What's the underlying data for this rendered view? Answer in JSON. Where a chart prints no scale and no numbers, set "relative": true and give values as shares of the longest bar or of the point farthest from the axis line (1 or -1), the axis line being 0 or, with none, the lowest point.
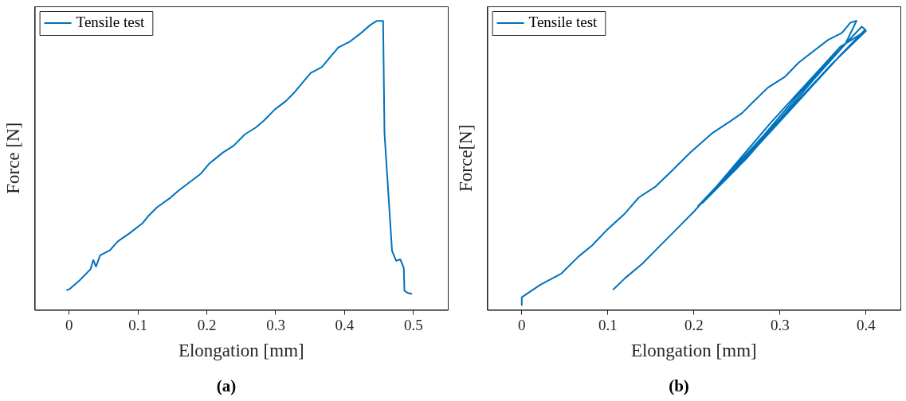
{
  "chart_data": [
    {
      "type": "line",
      "xlabel": "Elongation [mm]",
      "ylabel": "Force [N]",
      "relative": true,
      "xlim": [
        -0.05,
        0.55
      ],
      "xticks": [
        0,
        0.1,
        0.2,
        0.3,
        0.4,
        0.5
      ],
      "legend": "top left",
      "grid": false,
      "annotations": [
        "(a)"
      ],
      "series": [
        {
          "name": "Tensile test",
          "color": "#0072bd",
          "x": [
            -0.004,
            0.001,
            0.015,
            0.031,
            0.035,
            0.039,
            0.045,
            0.059,
            0.071,
            0.087,
            0.107,
            0.115,
            0.127,
            0.147,
            0.159,
            0.175,
            0.191,
            0.203,
            0.223,
            0.239,
            0.255,
            0.271,
            0.283,
            0.299,
            0.315,
            0.327,
            0.339,
            0.351,
            0.367,
            0.379,
            0.391,
            0.407,
            0.423,
            0.437,
            0.447,
            0.456,
            0.458,
            0.469,
            0.475,
            0.481,
            0.486,
            0.487,
            0.493,
            0.498
          ],
          "values": [
            0.068,
            0.073,
            0.102,
            0.141,
            0.173,
            0.15,
            0.189,
            0.206,
            0.238,
            0.264,
            0.301,
            0.325,
            0.354,
            0.388,
            0.413,
            0.442,
            0.471,
            0.505,
            0.544,
            0.568,
            0.607,
            0.631,
            0.655,
            0.694,
            0.723,
            0.752,
            0.786,
            0.82,
            0.84,
            0.874,
            0.908,
            0.927,
            0.956,
            0.985,
            1,
            1,
            0.612,
            0.204,
            0.17,
            0.175,
            0.146,
            0.066,
            0.058,
            0.056
          ]
        }
      ]
    },
    {
      "type": "line",
      "xlabel": "Elongation [mm]",
      "ylabel": "Force[N]",
      "relative": true,
      "xlim": [
        -0.04,
        0.44
      ],
      "xticks": [
        0,
        0.1,
        0.2,
        0.3,
        0.4
      ],
      "legend": "top left",
      "grid": false,
      "annotations": [
        "(b)"
      ],
      "series": [
        {
          "name": "Tensile test",
          "color": "#0072bd",
          "x": [
            0,
            0,
            0.022,
            0.046,
            0.066,
            0.082,
            0.099,
            0.119,
            0.136,
            0.156,
            0.176,
            0.196,
            0.222,
            0.242,
            0.256,
            0.269,
            0.286,
            0.306,
            0.322,
            0.339,
            0.356,
            0.372,
            0.382,
            0.389,
            0.376,
            0.34,
            0.3,
            0.26,
            0.22,
            0.205,
            0.24,
            0.28,
            0.32,
            0.36,
            0.395,
            0.399,
            0.37,
            0.33,
            0.29,
            0.25,
            0.21,
            0.25,
            0.29,
            0.33,
            0.37,
            0.4,
            0.36,
            0.31,
            0.26,
            0.215,
            0.2,
            0.18,
            0.16,
            0.14,
            0.12,
            0.106
          ],
          "values": [
            0.015,
            0.044,
            0.088,
            0.126,
            0.185,
            0.224,
            0.277,
            0.331,
            0.389,
            0.428,
            0.486,
            0.545,
            0.613,
            0.652,
            0.681,
            0.72,
            0.769,
            0.807,
            0.856,
            0.895,
            0.934,
            0.958,
            0.994,
            1,
            0.92,
            0.8,
            0.66,
            0.53,
            0.4,
            0.36,
            0.47,
            0.6,
            0.74,
            0.87,
            0.98,
            0.97,
            0.88,
            0.75,
            0.62,
            0.49,
            0.37,
            0.51,
            0.65,
            0.78,
            0.91,
            0.965,
            0.85,
            0.69,
            0.52,
            0.39,
            0.34,
            0.28,
            0.22,
            0.16,
            0.11,
            0.07
          ]
        }
      ]
    }
  ]
}
